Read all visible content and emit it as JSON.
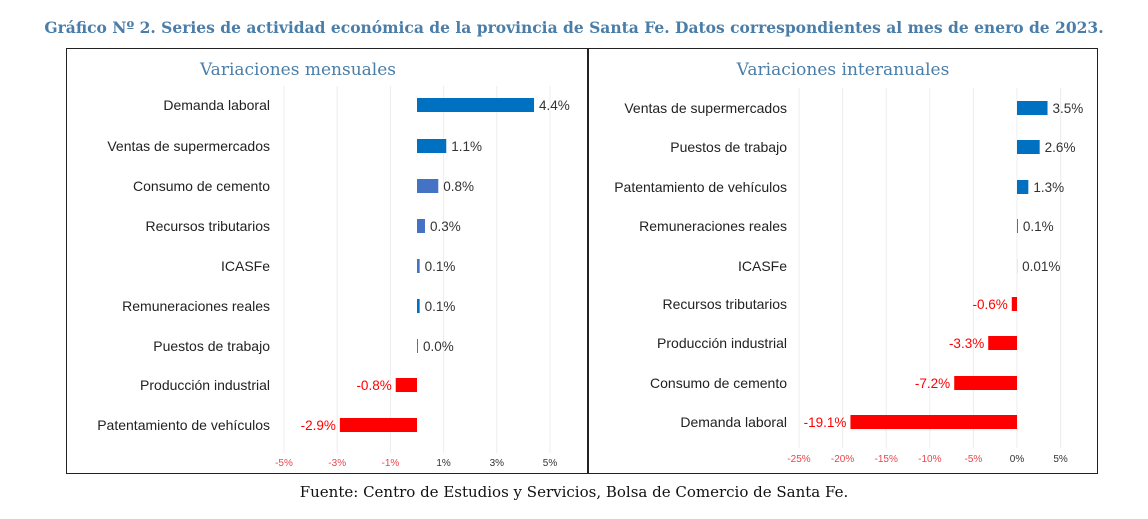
{
  "title": "Gráfico Nº 2. Series de actividad económica de la provincia de Santa Fe. Datos correspondientes al mes de enero de 2023.",
  "footer": "Fuente: Centro de Estudios y Servicios, Bolsa de Comercio de Santa Fe.",
  "chart_data": [
    {
      "type": "bar",
      "orientation": "horizontal",
      "title": "Variaciones mensuales",
      "categories": [
        "Demanda laboral",
        "Ventas de supermercados",
        "Consumo de cemento",
        "Recursos tributarios",
        "ICASFe",
        "Remuneraciones reales",
        "Puestos de trabajo",
        "Producción industrial",
        "Patentamiento de vehículos"
      ],
      "values": [
        4.4,
        1.1,
        0.8,
        0.3,
        0.1,
        0.1,
        0.0,
        -0.8,
        -2.9
      ],
      "labels": [
        "4.4%",
        "1.1%",
        "0.8%",
        "0.3%",
        "0.1%",
        "0.1%",
        "0.0%",
        "-0.8%",
        "-2.9%"
      ],
      "colors": [
        "#0070c0",
        "#0070c0",
        "#4472c4",
        "#4472c4",
        "#4472c4",
        "#0070c0",
        "#4472c4",
        "#ff0000",
        "#ff0000"
      ],
      "xticks": [
        -5,
        -3,
        -1,
        1,
        3,
        5
      ],
      "xtick_labels": [
        "-5%",
        "-3%",
        "-1%",
        "1%",
        "3%",
        "5%"
      ],
      "xlim": [
        -5.5,
        5.5
      ],
      "grid": true
    },
    {
      "type": "bar",
      "orientation": "horizontal",
      "title": "Variaciones interanuales",
      "categories": [
        "Ventas de supermercados",
        "Puestos de trabajo",
        "Patentamiento de vehículos",
        "Remuneraciones reales",
        "ICASFe",
        "Recursos tributarios",
        "Producción industrial",
        "Consumo de cemento",
        "Demanda laboral"
      ],
      "values": [
        3.5,
        2.6,
        1.3,
        0.1,
        0.01,
        -0.6,
        -3.3,
        -7.2,
        -19.1
      ],
      "labels": [
        "3.5%",
        "2.6%",
        "1.3%",
        "0.1%",
        "0.01%",
        "-0.6%",
        "-3.3%",
        "-7.2%",
        "-19.1%"
      ],
      "colors": [
        "#0070c0",
        "#0070c0",
        "#0070c0",
        "#0070c0",
        "#0070c0",
        "#ff0000",
        "#ff0000",
        "#ff0000",
        "#ff0000"
      ],
      "xticks": [
        -25,
        -20,
        -15,
        -10,
        -5,
        0,
        5
      ],
      "xtick_labels": [
        "-25%",
        "-20%",
        "-15%",
        "-10%",
        "-5%",
        "0%",
        "5%"
      ],
      "xlim": [
        -25,
        5
      ],
      "grid": true
    }
  ]
}
